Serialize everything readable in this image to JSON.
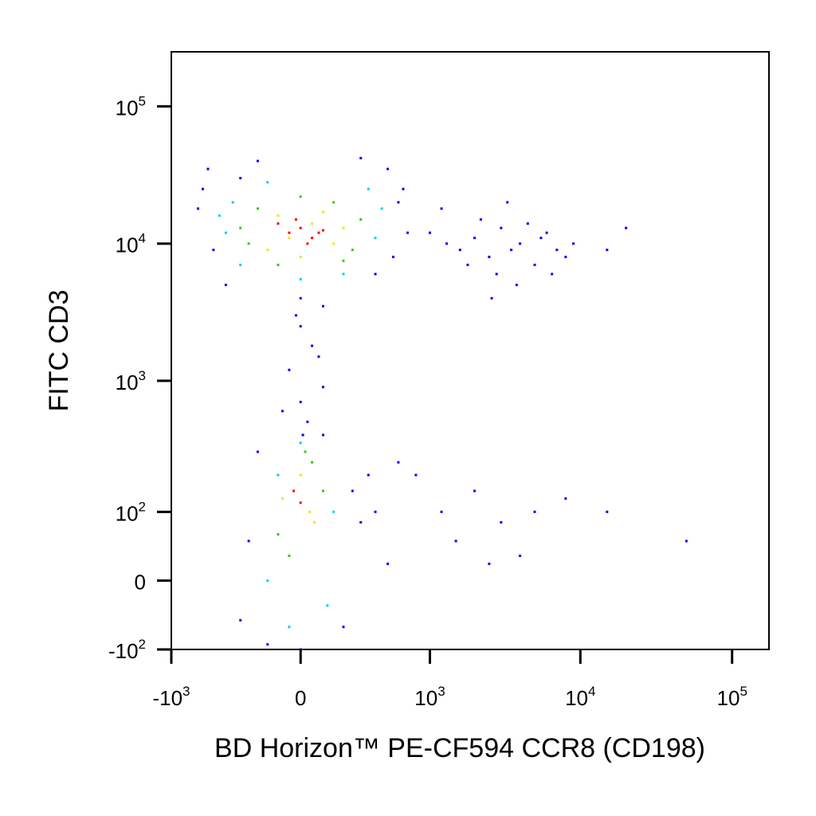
{
  "chart_data": {
    "type": "scatter",
    "x_label": "BD Horizon™ PE-CF594 CCR8 (CD198)",
    "y_label": "FITC  CD3",
    "xlim": [
      -1000,
      175000
    ],
    "ylim": [
      -100,
      250000
    ],
    "xticks": [
      {
        "value": -1000,
        "label": "-10",
        "sup": "3"
      },
      0,
      {
        "value": 1000,
        "label": "10",
        "sup": "3"
      },
      {
        "value": 10000,
        "label": "10",
        "sup": "4"
      },
      {
        "value": 100000,
        "label": "10",
        "sup": "5"
      }
    ],
    "yticks": [
      {
        "value": -100,
        "label": "-10",
        "sup": "2"
      },
      0,
      {
        "value": 100,
        "label": "10",
        "sup": "2"
      },
      {
        "value": 1000,
        "label": "10",
        "sup": "3"
      },
      {
        "value": 10000,
        "label": "10",
        "sup": "4"
      },
      {
        "value": 100000,
        "label": "10",
        "sup": "5"
      }
    ],
    "series": [
      {
        "color": "#0000ff",
        "x": [
          -600,
          -500,
          600,
          700,
          -550,
          500,
          -400,
          400,
          -200,
          300,
          0,
          100,
          -650,
          650,
          -300,
          550,
          1000,
          1300,
          1600,
          2000,
          2500,
          3000,
          3500,
          4000,
          5000,
          6000,
          7000,
          8000,
          2200,
          2800,
          3300,
          4500,
          1800,
          5500,
          9000,
          15000,
          20000,
          1200,
          2600,
          3800,
          6500,
          0,
          50,
          -50,
          100,
          0,
          30,
          -20,
          80,
          -80,
          10,
          -250,
          250,
          -200,
          300,
          -300,
          350,
          400,
          500,
          -150,
          0,
          100,
          200,
          800,
          1200,
          1500,
          2000,
          3000,
          5000,
          8000,
          15000,
          50000,
          600,
          2500,
          4000
        ],
        "values": [
          25000,
          9000,
          20000,
          12000,
          35000,
          35000,
          5000,
          6000,
          40000,
          42000,
          4000,
          3500,
          18000,
          25000,
          30000,
          8000,
          12000,
          10000,
          9000,
          11000,
          8000,
          13000,
          9000,
          10000,
          7000,
          12000,
          9000,
          8000,
          15000,
          6000,
          20000,
          14000,
          7000,
          11000,
          10000,
          9000,
          13000,
          18000,
          4000,
          5000,
          6000,
          2500,
          1800,
          1200,
          900,
          700,
          500,
          3000,
          1500,
          600,
          400,
          50,
          150,
          300,
          80,
          -50,
          200,
          100,
          20,
          -90,
          -100,
          400,
          -60,
          200,
          100,
          50,
          150,
          80,
          100,
          130,
          100,
          50,
          250,
          20,
          30
        ]
      },
      {
        "color": "#00ccff",
        "x": [
          -400,
          400,
          -350,
          450,
          -300,
          350,
          -150,
          200,
          0,
          -450,
          -150,
          150,
          -100,
          120,
          0,
          -50
        ],
        "values": [
          12000,
          11000,
          20000,
          18000,
          7000,
          25000,
          28000,
          6000,
          5500,
          16000,
          0,
          100,
          200,
          -30,
          350,
          -60
        ]
      },
      {
        "color": "#33cc00",
        "x": [
          -250,
          250,
          -200,
          300,
          -100,
          150,
          0,
          -300,
          200,
          -100,
          50,
          -50,
          100,
          20
        ],
        "values": [
          10000,
          9000,
          18000,
          15000,
          7000,
          20000,
          22000,
          13000,
          7500,
          60,
          250,
          30,
          150,
          300
        ]
      },
      {
        "color": "#f2e600",
        "x": [
          -150,
          150,
          -100,
          200,
          0,
          100,
          -50,
          50,
          -80,
          40,
          0,
          60
        ],
        "values": [
          9000,
          10000,
          16000,
          13000,
          8000,
          17000,
          11000,
          14000,
          130,
          100,
          200,
          80
        ]
      },
      {
        "color": "#ff0000",
        "x": [
          -50,
          0,
          50,
          100,
          -100,
          30,
          -20,
          80,
          0,
          -30
        ],
        "values": [
          12000,
          13000,
          11000,
          12500,
          14000,
          10000,
          15000,
          12000,
          120,
          150
        ]
      }
    ]
  }
}
